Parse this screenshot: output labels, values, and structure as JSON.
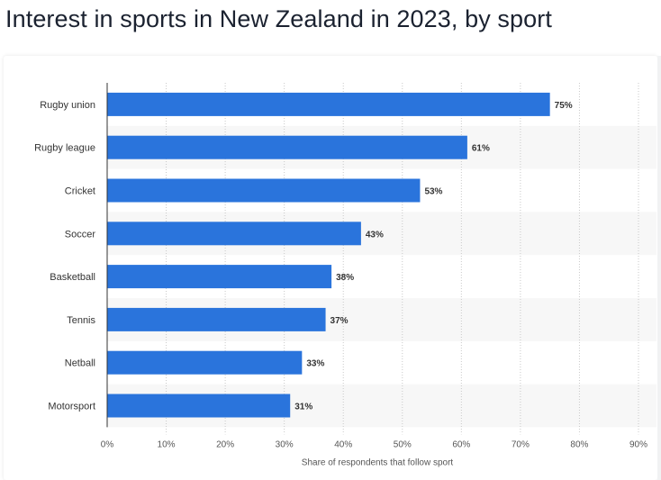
{
  "title": "Interest in sports in New Zealand in 2023, by sport",
  "chart_data": {
    "type": "bar",
    "orientation": "horizontal",
    "categories": [
      "Rugby union",
      "Rugby league",
      "Cricket",
      "Soccer",
      "Basketball",
      "Tennis",
      "Netball",
      "Motorsport"
    ],
    "values": [
      75,
      61,
      53,
      43,
      38,
      37,
      33,
      31
    ],
    "value_labels": [
      "75%",
      "61%",
      "53%",
      "43%",
      "38%",
      "37%",
      "33%",
      "31%"
    ],
    "xlabel": "Share of respondents that follow sport",
    "ylabel": "",
    "xlim": [
      0,
      90
    ],
    "x_ticks": [
      "0%",
      "10%",
      "20%",
      "30%",
      "40%",
      "50%",
      "60%",
      "70%",
      "80%",
      "90%"
    ],
    "grid": true,
    "bar_color": "#2a74dc"
  }
}
